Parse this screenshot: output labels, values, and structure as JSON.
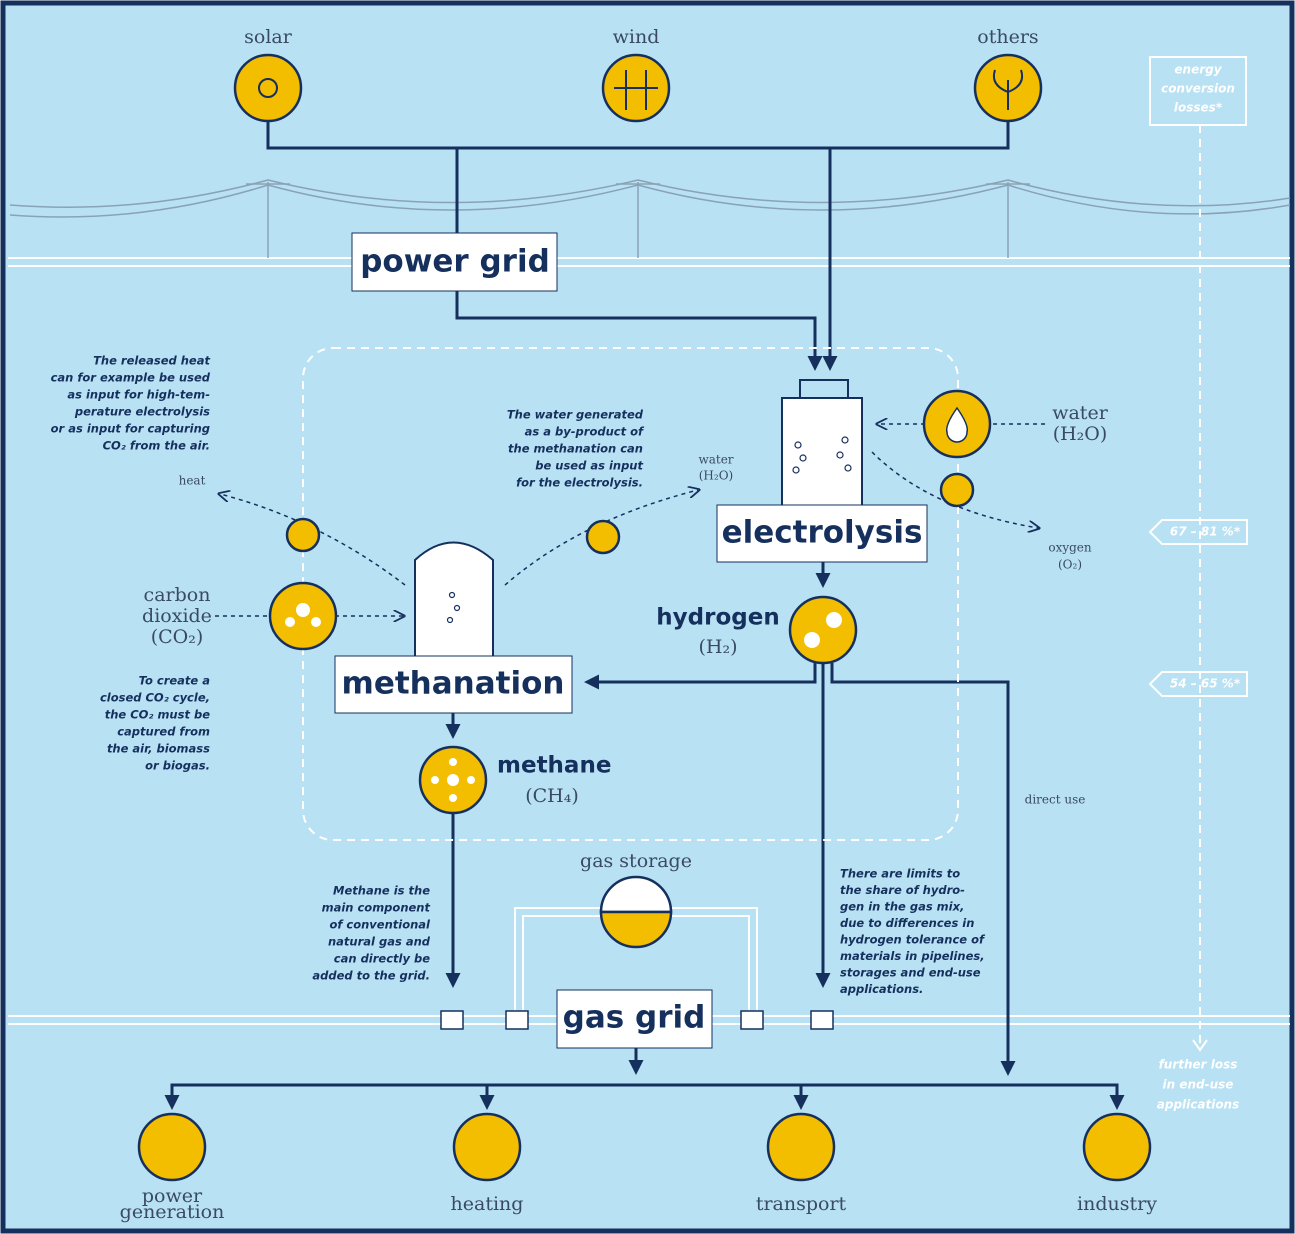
{
  "sources": [
    "solar",
    "wind",
    "others"
  ],
  "losses_box": [
    "energy",
    "conversion",
    "losses*"
  ],
  "power_grid": "power grid",
  "heat_note": [
    "The released heat",
    "can for example be used",
    "as input for high-tem-",
    "perature electrolysis",
    "or as input for capturing",
    "CO₂ from the air."
  ],
  "heat": "heat",
  "water_note": [
    "The water generated",
    "as a by-product of",
    "the methanation can",
    "be used as input",
    "for the electrolysis."
  ],
  "water_small": [
    "water",
    "(H₂O)"
  ],
  "water": [
    "water",
    "(H₂O)"
  ],
  "electrolysis": "electrolysis",
  "oxygen": [
    "oxygen",
    "(O₂)"
  ],
  "efficiency_electrolysis": "67 – 81 %*",
  "efficiency_methanation": "54 – 65 %*",
  "carbon_dioxide": [
    "carbon",
    "dioxide",
    "(CO₂)"
  ],
  "hydrogen": "hydrogen",
  "hydrogen_formula": "(H₂)",
  "methanation": "methanation",
  "co2_note": [
    "To create a",
    "closed CO₂ cycle,",
    "the CO₂ must be",
    "captured from",
    "the air, biomass",
    "or biogas."
  ],
  "methane": "methane",
  "methane_formula": "(CH₄)",
  "direct_use": "direct use",
  "gas_storage": "gas storage",
  "methane_note": [
    "Methane is the",
    "main component",
    "of conventional",
    "natural gas and",
    "can directly be",
    "added to the grid."
  ],
  "hydrogen_note": [
    "There are limits to",
    "the share of hydro-",
    "gen in the gas mix,",
    "due to differences in",
    "hydrogen tolerance of",
    "materials in pipelines,",
    "storages and end-use",
    "applications."
  ],
  "gas_grid": "gas grid",
  "further_loss": [
    "further loss",
    "in end-use",
    "applications"
  ],
  "end_uses": [
    [
      "power",
      "generation"
    ],
    [
      "heating"
    ],
    [
      "transport"
    ],
    [
      "industry"
    ]
  ]
}
